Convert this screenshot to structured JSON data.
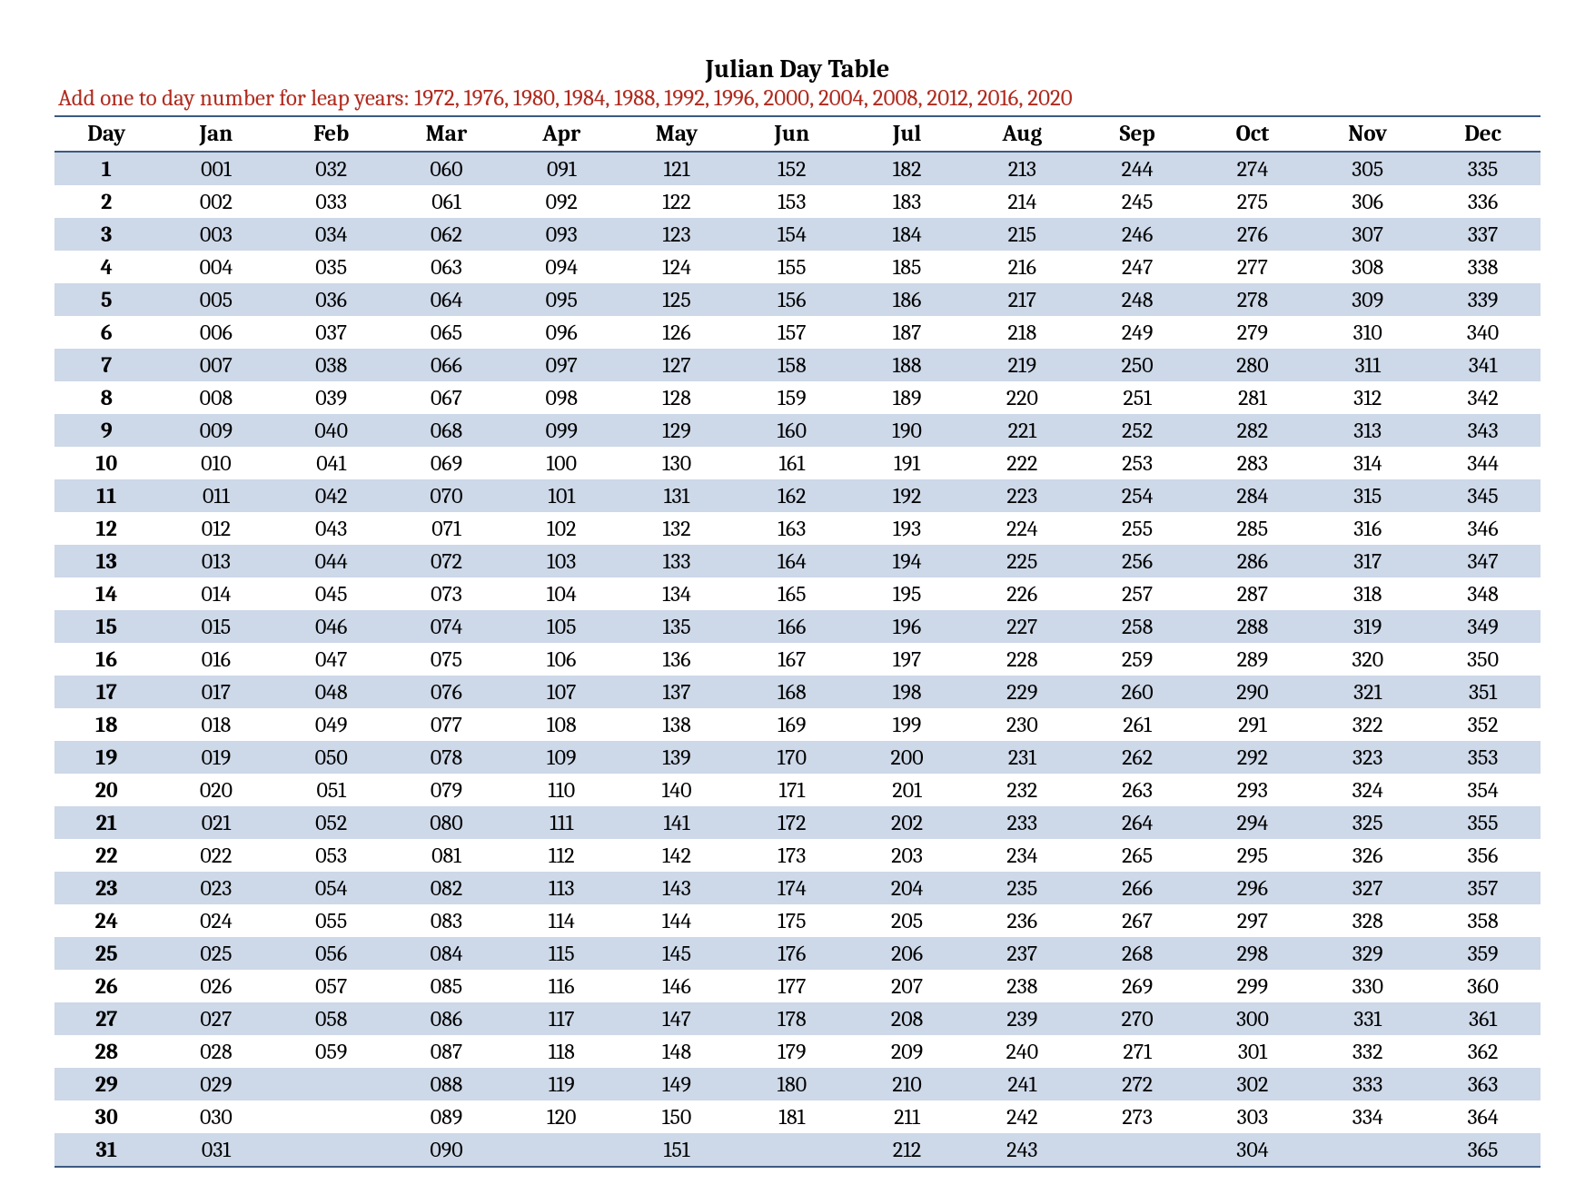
{
  "title": "Julian Day Table",
  "subtitle": "Add one to day number for leap years: 1972, 1976, 1980, 1984, 1988, 1992, 1996, 2000, 2004, 2008, 2012, 2016, 2020",
  "colors": {
    "title_color": "#000000",
    "subtitle_color": "#b02a1e",
    "border_color": "#3b5a82",
    "row_odd_bg": "#cdd8e8",
    "row_even_bg": "#ffffff",
    "text_color": "#000000",
    "page_bg": "#ffffff"
  },
  "typography": {
    "title_fontsize_pt": 20,
    "subtitle_fontsize_pt": 18,
    "header_fontsize_pt": 18,
    "cell_fontsize_pt": 17,
    "font_family": "Cambria / serif"
  },
  "table": {
    "type": "table",
    "columns": [
      "Day",
      "Jan",
      "Feb",
      "Mar",
      "Apr",
      "May",
      "Jun",
      "Jul",
      "Aug",
      "Sep",
      "Oct",
      "Nov",
      "Dec"
    ],
    "rows": [
      [
        "1",
        "001",
        "032",
        "060",
        "091",
        "121",
        "152",
        "182",
        "213",
        "244",
        "274",
        "305",
        "335"
      ],
      [
        "2",
        "002",
        "033",
        "061",
        "092",
        "122",
        "153",
        "183",
        "214",
        "245",
        "275",
        "306",
        "336"
      ],
      [
        "3",
        "003",
        "034",
        "062",
        "093",
        "123",
        "154",
        "184",
        "215",
        "246",
        "276",
        "307",
        "337"
      ],
      [
        "4",
        "004",
        "035",
        "063",
        "094",
        "124",
        "155",
        "185",
        "216",
        "247",
        "277",
        "308",
        "338"
      ],
      [
        "5",
        "005",
        "036",
        "064",
        "095",
        "125",
        "156",
        "186",
        "217",
        "248",
        "278",
        "309",
        "339"
      ],
      [
        "6",
        "006",
        "037",
        "065",
        "096",
        "126",
        "157",
        "187",
        "218",
        "249",
        "279",
        "310",
        "340"
      ],
      [
        "7",
        "007",
        "038",
        "066",
        "097",
        "127",
        "158",
        "188",
        "219",
        "250",
        "280",
        "311",
        "341"
      ],
      [
        "8",
        "008",
        "039",
        "067",
        "098",
        "128",
        "159",
        "189",
        "220",
        "251",
        "281",
        "312",
        "342"
      ],
      [
        "9",
        "009",
        "040",
        "068",
        "099",
        "129",
        "160",
        "190",
        "221",
        "252",
        "282",
        "313",
        "343"
      ],
      [
        "10",
        "010",
        "041",
        "069",
        "100",
        "130",
        "161",
        "191",
        "222",
        "253",
        "283",
        "314",
        "344"
      ],
      [
        "11",
        "011",
        "042",
        "070",
        "101",
        "131",
        "162",
        "192",
        "223",
        "254",
        "284",
        "315",
        "345"
      ],
      [
        "12",
        "012",
        "043",
        "071",
        "102",
        "132",
        "163",
        "193",
        "224",
        "255",
        "285",
        "316",
        "346"
      ],
      [
        "13",
        "013",
        "044",
        "072",
        "103",
        "133",
        "164",
        "194",
        "225",
        "256",
        "286",
        "317",
        "347"
      ],
      [
        "14",
        "014",
        "045",
        "073",
        "104",
        "134",
        "165",
        "195",
        "226",
        "257",
        "287",
        "318",
        "348"
      ],
      [
        "15",
        "015",
        "046",
        "074",
        "105",
        "135",
        "166",
        "196",
        "227",
        "258",
        "288",
        "319",
        "349"
      ],
      [
        "16",
        "016",
        "047",
        "075",
        "106",
        "136",
        "167",
        "197",
        "228",
        "259",
        "289",
        "320",
        "350"
      ],
      [
        "17",
        "017",
        "048",
        "076",
        "107",
        "137",
        "168",
        "198",
        "229",
        "260",
        "290",
        "321",
        "351"
      ],
      [
        "18",
        "018",
        "049",
        "077",
        "108",
        "138",
        "169",
        "199",
        "230",
        "261",
        "291",
        "322",
        "352"
      ],
      [
        "19",
        "019",
        "050",
        "078",
        "109",
        "139",
        "170",
        "200",
        "231",
        "262",
        "292",
        "323",
        "353"
      ],
      [
        "20",
        "020",
        "051",
        "079",
        "110",
        "140",
        "171",
        "201",
        "232",
        "263",
        "293",
        "324",
        "354"
      ],
      [
        "21",
        "021",
        "052",
        "080",
        "111",
        "141",
        "172",
        "202",
        "233",
        "264",
        "294",
        "325",
        "355"
      ],
      [
        "22",
        "022",
        "053",
        "081",
        "112",
        "142",
        "173",
        "203",
        "234",
        "265",
        "295",
        "326",
        "356"
      ],
      [
        "23",
        "023",
        "054",
        "082",
        "113",
        "143",
        "174",
        "204",
        "235",
        "266",
        "296",
        "327",
        "357"
      ],
      [
        "24",
        "024",
        "055",
        "083",
        "114",
        "144",
        "175",
        "205",
        "236",
        "267",
        "297",
        "328",
        "358"
      ],
      [
        "25",
        "025",
        "056",
        "084",
        "115",
        "145",
        "176",
        "206",
        "237",
        "268",
        "298",
        "329",
        "359"
      ],
      [
        "26",
        "026",
        "057",
        "085",
        "116",
        "146",
        "177",
        "207",
        "238",
        "269",
        "299",
        "330",
        "360"
      ],
      [
        "27",
        "027",
        "058",
        "086",
        "117",
        "147",
        "178",
        "208",
        "239",
        "270",
        "300",
        "331",
        "361"
      ],
      [
        "28",
        "028",
        "059",
        "087",
        "118",
        "148",
        "179",
        "209",
        "240",
        "271",
        "301",
        "332",
        "362"
      ],
      [
        "29",
        "029",
        "",
        "088",
        "119",
        "149",
        "180",
        "210",
        "241",
        "272",
        "302",
        "333",
        "363"
      ],
      [
        "30",
        "030",
        "",
        "089",
        "120",
        "150",
        "181",
        "211",
        "242",
        "273",
        "303",
        "334",
        "364"
      ],
      [
        "31",
        "031",
        "",
        "090",
        "",
        "151",
        "",
        "212",
        "243",
        "",
        "304",
        "",
        "365"
      ]
    ]
  }
}
